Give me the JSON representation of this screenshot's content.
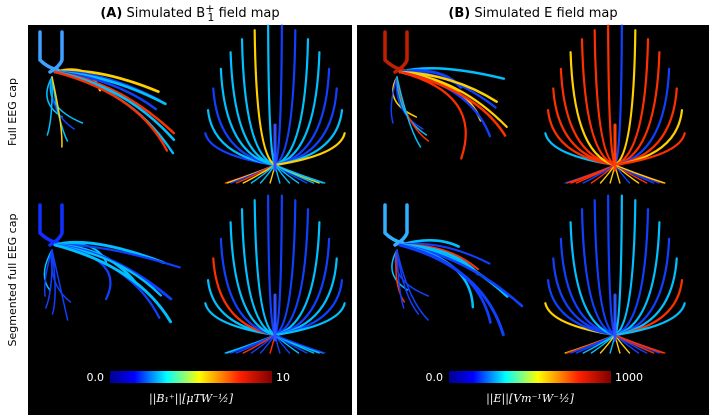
{
  "panels": [
    {
      "title": {
        "letter": "(A)",
        "text": "Simulated B",
        "sup": "+",
        "sub": "1",
        "tail": "field map"
      },
      "colorbar": {
        "min": "0.0",
        "max": "10",
        "label": "||B₁⁺||[μTW⁻½]"
      }
    },
    {
      "title": {
        "letter": "(B)",
        "text": "Simulated E field map"
      },
      "colorbar": {
        "min": "0.0",
        "max": "1000",
        "label": "||E||[Vm⁻¹W⁻½]"
      }
    }
  ],
  "rows": [
    "Full EEG cap",
    "Segmented full EEG cap"
  ]
}
